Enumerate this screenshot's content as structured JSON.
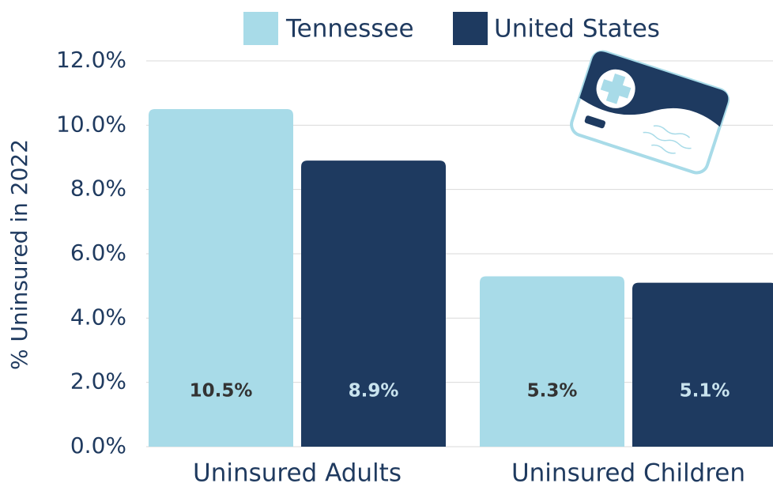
{
  "chart_data": {
    "type": "bar",
    "y_label": "% Uninsured in 2022",
    "categories": [
      "Uninsured Adults",
      "Uninsured Children"
    ],
    "series": [
      {
        "name": "Tennessee",
        "color": "#a8dbe8",
        "values": [
          10.5,
          5.3
        ],
        "value_labels": [
          "10.5%",
          "5.3%"
        ]
      },
      {
        "name": "United States",
        "color": "#1e3a60",
        "values": [
          8.9,
          5.1
        ],
        "value_labels": [
          "8.9%",
          "5.1%"
        ]
      }
    ],
    "ylim": [
      0,
      12
    ],
    "yticks": [
      {
        "value": 0,
        "label": "0.0%"
      },
      {
        "value": 2,
        "label": "2.0%"
      },
      {
        "value": 4,
        "label": "4.0%"
      },
      {
        "value": 6,
        "label": "6.0%"
      },
      {
        "value": 8,
        "label": "8.0%"
      },
      {
        "value": 10,
        "label": "10.0%"
      },
      {
        "value": 12,
        "label": "12.0%"
      }
    ],
    "grid": true,
    "legend": "top"
  }
}
